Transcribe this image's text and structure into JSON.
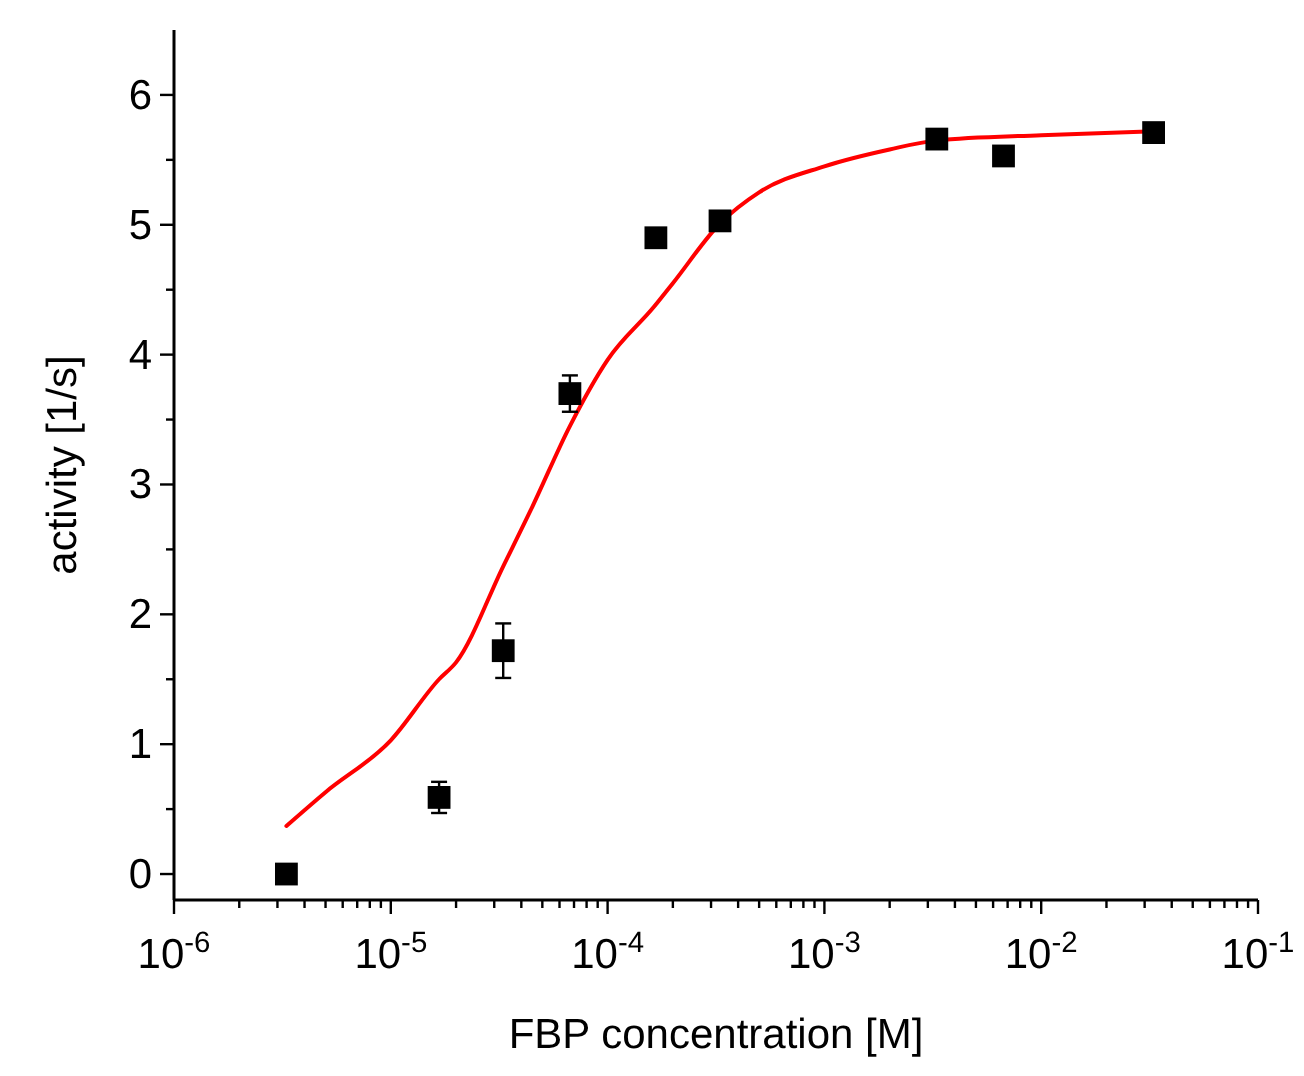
{
  "chart_data": {
    "type": "scatter",
    "xlabel": "FBP concentration [M]",
    "ylabel": "activity [1/s]",
    "log": "x",
    "grid": false,
    "xlim": [
      1e-06,
      0.1
    ],
    "xticks": [
      {
        "value": 1e-06,
        "label": "10$^{-6}$"
      },
      {
        "value": 2e-06,
        "label": null
      },
      {
        "value": 3e-06,
        "label": null
      },
      {
        "value": 4e-06,
        "label": null
      },
      {
        "value": 5e-06,
        "label": null
      },
      {
        "value": 6e-06,
        "label": null
      },
      {
        "value": 7e-06,
        "label": null
      },
      {
        "value": 8e-06,
        "label": null
      },
      {
        "value": 9e-06,
        "label": null
      },
      {
        "value": 1e-05,
        "label": "10$^{-5}$"
      },
      {
        "value": 2e-05,
        "label": null
      },
      {
        "value": 3e-05,
        "label": null
      },
      {
        "value": 4e-05,
        "label": null
      },
      {
        "value": 5e-05,
        "label": null
      },
      {
        "value": 6e-05,
        "label": null
      },
      {
        "value": 7e-05,
        "label": null
      },
      {
        "value": 8e-05,
        "label": null
      },
      {
        "value": 9e-05,
        "label": null
      },
      {
        "value": 0.0001,
        "label": "10$^{-4}$"
      },
      {
        "value": 0.0002,
        "label": null
      },
      {
        "value": 0.0003,
        "label": null
      },
      {
        "value": 0.0004,
        "label": null
      },
      {
        "value": 0.0005,
        "label": null
      },
      {
        "value": 0.0006,
        "label": null
      },
      {
        "value": 0.0007,
        "label": null
      },
      {
        "value": 0.0008,
        "label": null
      },
      {
        "value": 0.0009,
        "label": null
      },
      {
        "value": 0.001,
        "label": "10$^{-3}$"
      },
      {
        "value": 0.002,
        "label": null
      },
      {
        "value": 0.003,
        "label": null
      },
      {
        "value": 0.004,
        "label": null
      },
      {
        "value": 0.005,
        "label": null
      },
      {
        "value": 0.006,
        "label": null
      },
      {
        "value": 0.007,
        "label": null
      },
      {
        "value": 0.008,
        "label": null
      },
      {
        "value": 0.009,
        "label": null
      },
      {
        "value": 0.01,
        "label": "10$^{-2}$"
      },
      {
        "value": 0.02,
        "label": null
      },
      {
        "value": 0.03,
        "label": null
      },
      {
        "value": 0.04,
        "label": null
      },
      {
        "value": 0.05,
        "label": null
      },
      {
        "value": 0.06,
        "label": null
      },
      {
        "value": 0.07,
        "label": null
      },
      {
        "value": 0.08,
        "label": null
      },
      {
        "value": 0.09,
        "label": null
      },
      {
        "value": 0.1,
        "label": "10$^{-1}$"
      }
    ],
    "ylim": [
      -0.2,
      6.5
    ],
    "yticks": [
      0,
      {
        "value": 0.5,
        "label": null
      },
      1,
      {
        "value": 1.5,
        "label": null
      },
      2,
      {
        "value": 2.5,
        "label": null
      },
      3,
      {
        "value": 3.5,
        "label": null
      },
      4,
      {
        "value": 4.5,
        "label": null
      },
      5,
      {
        "value": 5.5,
        "label": null
      },
      6
    ],
    "series": [
      {
        "marker": "square",
        "color": "#000000",
        "x": [
          3.3e-06,
          1.67e-05,
          3.3e-05,
          6.7e-05,
          0.000167,
          0.00033,
          0.0033,
          0.0067,
          0.033
        ],
        "values": [
          0,
          0.59,
          1.72,
          3.7,
          4.9,
          5.03,
          5.66,
          5.53,
          5.71
        ],
        "errors": [
          null,
          0.12,
          0.21,
          0.14,
          null,
          null,
          null,
          null,
          null
        ]
      },
      {
        "type": "line",
        "color": "#ff0000",
        "marker": "none",
        "x": [
          3.3e-06,
          5e-06,
          1e-05,
          1.67e-05,
          2e-05,
          3.3e-05,
          4.5e-05,
          6.7e-05,
          0.0001,
          0.000164,
          0.0002,
          0.00033,
          0.0005,
          0.001,
          0.002,
          0.0033,
          0.01,
          0.033
        ],
        "values": [
          0.37,
          0.63,
          1.03,
          1.5,
          1.63,
          2.37,
          2.83,
          3.45,
          3.96,
          4.37,
          4.55,
          5.01,
          5.25,
          5.45,
          5.58,
          5.65,
          5.69,
          5.72
        ]
      }
    ]
  }
}
